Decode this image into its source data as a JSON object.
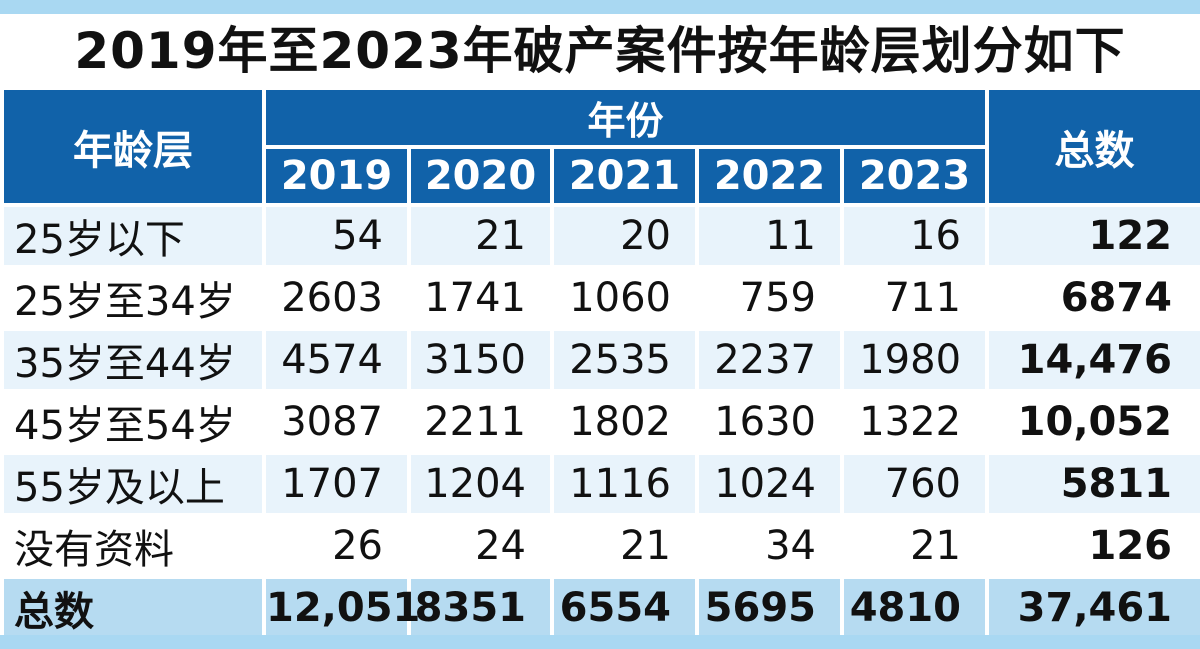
{
  "title": "2019年至2023年破产案件按年龄层划分如下",
  "colors": {
    "header_bg": "#1162a9",
    "stripe": "#a9d8f2",
    "row_alt": "#e8f3fb",
    "total_row": "#b6dbf1"
  },
  "header": {
    "age": "年龄层",
    "year_group": "年份",
    "total": "总数",
    "years": [
      "2019",
      "2020",
      "2021",
      "2022",
      "2023"
    ]
  },
  "chart_data": {
    "type": "table",
    "title": "2019年至2023年破产案件按年龄层划分如下",
    "columns": [
      "年龄层",
      "2019",
      "2020",
      "2021",
      "2022",
      "2023",
      "总数"
    ],
    "rows": [
      [
        "25岁以下",
        "54",
        "21",
        "20",
        "11",
        "16",
        "122"
      ],
      [
        "25岁至34岁",
        "2603",
        "1741",
        "1060",
        "759",
        "711",
        "6874"
      ],
      [
        "35岁至44岁",
        "4574",
        "3150",
        "2535",
        "2237",
        "1980",
        "14,476"
      ],
      [
        "45岁至54岁",
        "3087",
        "2211",
        "1802",
        "1630",
        "1322",
        "10,052"
      ],
      [
        "55岁及以上",
        "1707",
        "1204",
        "1116",
        "1024",
        "760",
        "5811"
      ],
      [
        "没有资料",
        "26",
        "24",
        "21",
        "34",
        "21",
        "126"
      ],
      [
        "总数",
        "12,051",
        "8351",
        "6554",
        "5695",
        "4810",
        "37,461"
      ]
    ]
  }
}
